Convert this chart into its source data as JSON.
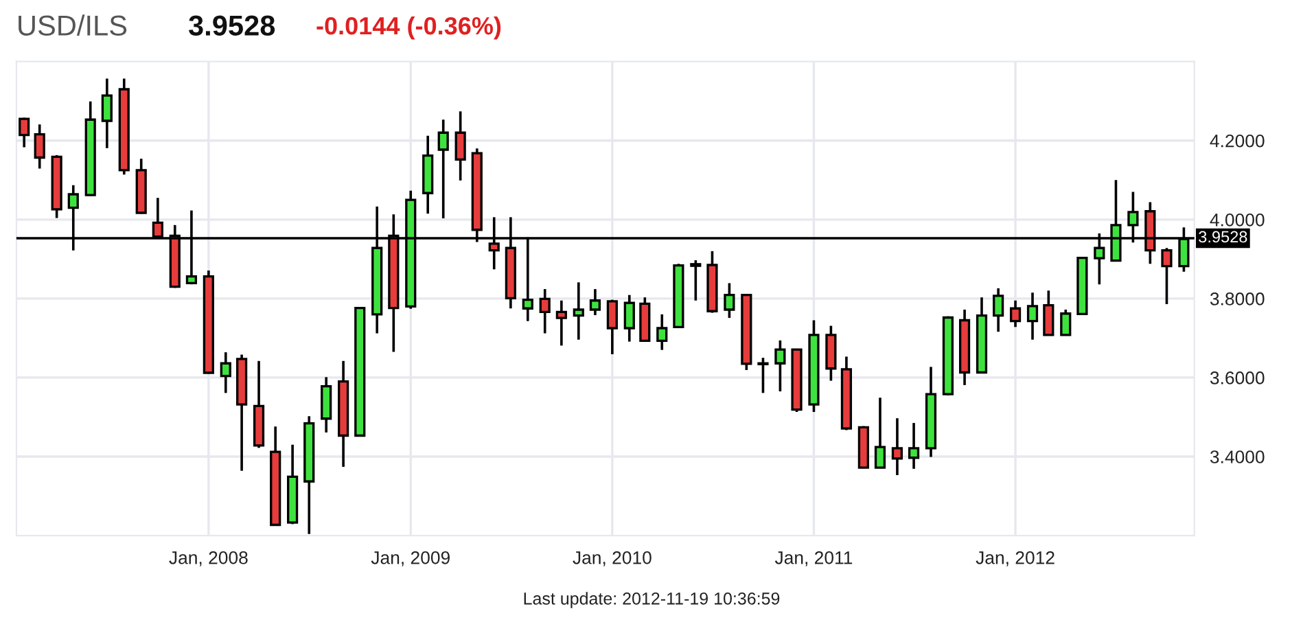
{
  "chart_data": {
    "type": "candlestick",
    "title": "USD/ILS",
    "annotations": [
      "3.9528",
      "-0.0144 (-0.36%)",
      "Last update: 2012-11-19 10:36:59"
    ],
    "x": [
      "2007-02",
      "2007-03",
      "2007-04",
      "2007-05",
      "2007-06",
      "2007-07",
      "2007-08",
      "2007-09",
      "2007-10",
      "2007-11",
      "2007-12",
      "2008-01",
      "2008-02",
      "2008-03",
      "2008-04",
      "2008-05",
      "2008-06",
      "2008-07",
      "2008-08",
      "2008-09",
      "2008-10",
      "2008-11",
      "2008-12",
      "2009-01",
      "2009-02",
      "2009-03",
      "2009-04",
      "2009-05",
      "2009-06",
      "2009-07",
      "2009-08",
      "2009-09",
      "2009-10",
      "2009-11",
      "2009-12",
      "2010-01",
      "2010-02",
      "2010-03",
      "2010-04",
      "2010-05",
      "2010-06",
      "2010-07",
      "2010-08",
      "2010-09",
      "2010-10",
      "2010-11",
      "2010-12",
      "2011-01",
      "2011-02",
      "2011-03",
      "2011-04",
      "2011-05",
      "2011-06",
      "2011-07",
      "2011-08",
      "2011-09",
      "2011-10",
      "2011-11",
      "2011-12",
      "2012-01",
      "2012-02",
      "2012-03",
      "2012-04",
      "2012-05",
      "2012-06",
      "2012-07",
      "2012-08",
      "2012-09",
      "2012-10",
      "2012-11"
    ],
    "ohlc": [
      [
        4.255,
        4.258,
        4.183,
        4.214
      ],
      [
        4.216,
        4.241,
        4.129,
        4.157
      ],
      [
        4.159,
        4.163,
        4.004,
        4.026
      ],
      [
        4.03,
        4.087,
        3.922,
        4.064
      ],
      [
        4.062,
        4.299,
        4.06,
        4.253
      ],
      [
        4.25,
        4.357,
        4.181,
        4.314
      ],
      [
        4.33,
        4.357,
        4.114,
        4.125
      ],
      [
        4.125,
        4.154,
        4.015,
        4.017
      ],
      [
        3.992,
        4.055,
        3.955,
        3.957
      ],
      [
        3.959,
        3.986,
        3.827,
        3.83
      ],
      [
        3.839,
        4.023,
        3.836,
        3.856
      ],
      [
        3.856,
        3.871,
        3.61,
        3.612
      ],
      [
        3.604,
        3.664,
        3.561,
        3.636
      ],
      [
        3.647,
        3.658,
        3.364,
        3.532
      ],
      [
        3.528,
        3.642,
        3.422,
        3.428
      ],
      [
        3.412,
        3.476,
        3.227,
        3.227
      ],
      [
        3.233,
        3.43,
        3.229,
        3.349
      ],
      [
        3.337,
        3.502,
        3.204,
        3.484
      ],
      [
        3.496,
        3.601,
        3.461,
        3.578
      ],
      [
        3.59,
        3.642,
        3.374,
        3.453
      ],
      [
        3.453,
        3.776,
        3.451,
        3.776
      ],
      [
        3.76,
        4.033,
        3.712,
        3.928
      ],
      [
        3.959,
        4.013,
        3.665,
        3.776
      ],
      [
        3.78,
        4.073,
        3.774,
        4.05
      ],
      [
        4.067,
        4.212,
        4.015,
        4.162
      ],
      [
        4.177,
        4.253,
        4.003,
        4.22
      ],
      [
        4.22,
        4.274,
        4.099,
        4.152
      ],
      [
        4.168,
        4.18,
        3.943,
        3.974
      ],
      [
        3.939,
        4.006,
        3.874,
        3.922
      ],
      [
        3.928,
        4.006,
        3.775,
        3.801
      ],
      [
        3.775,
        3.955,
        3.743,
        3.797
      ],
      [
        3.799,
        3.824,
        3.712,
        3.766
      ],
      [
        3.766,
        3.795,
        3.681,
        3.751
      ],
      [
        3.757,
        3.841,
        3.696,
        3.772
      ],
      [
        3.772,
        3.824,
        3.758,
        3.795
      ],
      [
        3.793,
        3.797,
        3.659,
        3.725
      ],
      [
        3.725,
        3.809,
        3.691,
        3.789
      ],
      [
        3.787,
        3.803,
        3.693,
        3.693
      ],
      [
        3.693,
        3.76,
        3.67,
        3.725
      ],
      [
        3.728,
        3.888,
        3.725,
        3.884
      ],
      [
        3.883,
        3.897,
        3.795,
        3.887
      ],
      [
        3.885,
        3.92,
        3.764,
        3.768
      ],
      [
        3.772,
        3.839,
        3.751,
        3.809
      ],
      [
        3.809,
        3.812,
        3.619,
        3.635
      ],
      [
        3.634,
        3.65,
        3.561,
        3.636
      ],
      [
        3.636,
        3.694,
        3.565,
        3.671
      ],
      [
        3.671,
        3.673,
        3.513,
        3.519
      ],
      [
        3.532,
        3.745,
        3.513,
        3.708
      ],
      [
        3.708,
        3.731,
        3.592,
        3.623
      ],
      [
        3.621,
        3.653,
        3.467,
        3.471
      ],
      [
        3.474,
        3.477,
        3.37,
        3.372
      ],
      [
        3.372,
        3.549,
        3.37,
        3.424
      ],
      [
        3.421,
        3.497,
        3.353,
        3.395
      ],
      [
        3.397,
        3.485,
        3.369,
        3.421
      ],
      [
        3.421,
        3.627,
        3.399,
        3.558
      ],
      [
        3.558,
        3.755,
        3.555,
        3.752
      ],
      [
        3.745,
        3.772,
        3.581,
        3.613
      ],
      [
        3.613,
        3.803,
        3.612,
        3.757
      ],
      [
        3.757,
        3.826,
        3.716,
        3.807
      ],
      [
        3.775,
        3.795,
        3.728,
        3.743
      ],
      [
        3.743,
        3.815,
        3.696,
        3.781
      ],
      [
        3.783,
        3.82,
        3.706,
        3.708
      ],
      [
        3.708,
        3.772,
        3.706,
        3.762
      ],
      [
        3.761,
        3.905,
        3.759,
        3.903
      ],
      [
        3.902,
        3.965,
        3.836,
        3.928
      ],
      [
        3.896,
        4.1,
        3.894,
        3.986
      ],
      [
        3.986,
        4.07,
        3.942,
        4.019
      ],
      [
        4.021,
        4.044,
        3.888,
        3.922
      ],
      [
        3.922,
        3.928,
        3.786,
        3.882
      ],
      [
        3.882,
        3.98,
        3.868,
        3.951
      ]
    ],
    "colors": [
      "#e63c3c",
      "#e63c3c",
      "#e63c3c",
      "#3ee23e",
      "#3ee23e",
      "#3ee23e",
      "#e63c3c",
      "#e63c3c",
      "#e63c3c",
      "#e63c3c",
      "#3ee23e",
      "#e63c3c",
      "#3ee23e",
      "#e63c3c",
      "#e63c3c",
      "#e63c3c",
      "#3ee23e",
      "#3ee23e",
      "#3ee23e",
      "#e63c3c",
      "#3ee23e",
      "#3ee23e",
      "#e63c3c",
      "#3ee23e",
      "#3ee23e",
      "#3ee23e",
      "#e63c3c",
      "#e63c3c",
      "#e63c3c",
      "#e63c3c",
      "#3ee23e",
      "#e63c3c",
      "#e63c3c",
      "#3ee23e",
      "#3ee23e",
      "#e63c3c",
      "#3ee23e",
      "#e63c3c",
      "#3ee23e",
      "#3ee23e",
      "#3ee23e",
      "#e63c3c",
      "#3ee23e",
      "#e63c3c",
      "#3ee23e",
      "#3ee23e",
      "#e63c3c",
      "#3ee23e",
      "#e63c3c",
      "#e63c3c",
      "#e63c3c",
      "#3ee23e",
      "#e63c3c",
      "#3ee23e",
      "#3ee23e",
      "#3ee23e",
      "#e63c3c",
      "#3ee23e",
      "#3ee23e",
      "#e63c3c",
      "#3ee23e",
      "#e63c3c",
      "#3ee23e",
      "#3ee23e",
      "#3ee23e",
      "#3ee23e",
      "#3ee23e",
      "#e63c3c",
      "#e63c3c",
      "#3ee23e"
    ],
    "xlim": [
      "2007-01-18",
      "2012-11-20"
    ],
    "xticks": [
      {
        "value": "2008-01-01",
        "label": "Jan, 2008"
      },
      {
        "value": "2009-01-01",
        "label": "Jan, 2009"
      },
      {
        "value": "2010-01-01",
        "label": "Jan, 2010"
      },
      {
        "value": "2011-01-01",
        "label": "Jan, 2011"
      },
      {
        "value": "2012-01-01",
        "label": "Jan, 2012"
      }
    ],
    "ylim": [
      3.2,
      4.4
    ],
    "yticks": [
      {
        "value": 3.4,
        "label": "3.4000"
      },
      {
        "value": 3.6,
        "label": "3.6000"
      },
      {
        "value": 3.8,
        "label": "3.8000"
      },
      {
        "value": 4.0,
        "label": "4.0000"
      },
      {
        "value": 4.2,
        "label": "4.2000"
      }
    ],
    "ref_lines": [
      {
        "axis": "y",
        "value": 3.9528,
        "label": "3.9528",
        "color": "#000000"
      }
    ],
    "grid": true,
    "legend": false
  }
}
